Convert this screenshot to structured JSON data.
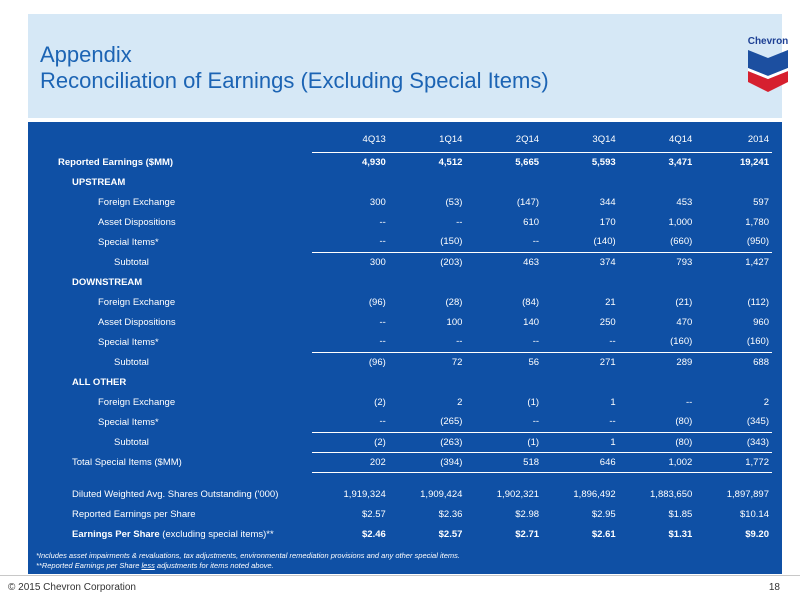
{
  "header": {
    "title_line1": "Appendix",
    "title_line2": "Reconciliation of Earnings (Excluding Special Items)"
  },
  "logo": {
    "text": "Chevron",
    "icon": "chevron-logo-icon",
    "colors": {
      "blue": "#1c4fa0",
      "red": "#d6202f"
    }
  },
  "table": {
    "columns": [
      "4Q13",
      "1Q14",
      "2Q14",
      "3Q14",
      "4Q14",
      "2014"
    ],
    "rows": [
      {
        "label": "Reported Earnings ($MM)",
        "values": [
          "4,930",
          "4,512",
          "5,665",
          "5,593",
          "3,471",
          "19,241"
        ]
      },
      {
        "label": "UPSTREAM",
        "values": []
      },
      {
        "label": "Foreign Exchange",
        "values": [
          "300",
          "(53)",
          "(147)",
          "344",
          "453",
          "597"
        ]
      },
      {
        "label": "Asset Dispositions",
        "values": [
          "--",
          "--",
          "610",
          "170",
          "1,000",
          "1,780"
        ]
      },
      {
        "label": "Special Items*",
        "values": [
          "--",
          "(150)",
          "--",
          "(140)",
          "(660)",
          "(950)"
        ]
      },
      {
        "label": "Subtotal",
        "values": [
          "300",
          "(203)",
          "463",
          "374",
          "793",
          "1,427"
        ]
      },
      {
        "label": "DOWNSTREAM",
        "values": []
      },
      {
        "label": "Foreign Exchange",
        "values": [
          "(96)",
          "(28)",
          "(84)",
          "21",
          "(21)",
          "(112)"
        ]
      },
      {
        "label": "Asset Dispositions",
        "values": [
          "--",
          "100",
          "140",
          "250",
          "470",
          "960"
        ]
      },
      {
        "label": "Special Items*",
        "values": [
          "--",
          "--",
          "--",
          "--",
          "(160)",
          "(160)"
        ]
      },
      {
        "label": "Subtotal",
        "values": [
          "(96)",
          "72",
          "56",
          "271",
          "289",
          "688"
        ]
      },
      {
        "label": "ALL OTHER",
        "values": []
      },
      {
        "label": "Foreign Exchange",
        "values": [
          "(2)",
          "2",
          "(1)",
          "1",
          "--",
          "2"
        ]
      },
      {
        "label": "Special Items*",
        "values": [
          "--",
          "(265)",
          "--",
          "--",
          "(80)",
          "(345)"
        ]
      },
      {
        "label": "Subtotal",
        "values": [
          "(2)",
          "(263)",
          "(1)",
          "1",
          "(80)",
          "(343)"
        ]
      },
      {
        "label": "Total Special Items ($MM)",
        "values": [
          "202",
          "(394)",
          "518",
          "646",
          "1,002",
          "1,772"
        ]
      },
      {
        "label": "Diluted Weighted Avg. Shares Outstanding ('000)",
        "values": [
          "1,919,324",
          "1,909,424",
          "1,902,321",
          "1,896,492",
          "1,883,650",
          "1,897,897"
        ]
      },
      {
        "label": "Reported Earnings per Share",
        "values": [
          "$2.57",
          "$2.36",
          "$2.98",
          "$2.95",
          "$1.85",
          "$10.14"
        ]
      },
      {
        "label_bold": "Earnings Per Share",
        "label_rest": " (excluding special items)**",
        "values": [
          "$2.46",
          "$2.57",
          "$2.71",
          "$2.61",
          "$1.31",
          "$9.20"
        ]
      }
    ]
  },
  "footnotes": {
    "note1": "*Includes asset impairments & revaluations, tax adjustments, environmental remediation provisions and any other special items.",
    "note2_a": "**Reported Earnings per Share ",
    "note2_b": "less",
    "note2_c": " adjustments for items noted above."
  },
  "footer": {
    "copyright": "© 2015 Chevron Corporation",
    "page_number": "18"
  }
}
